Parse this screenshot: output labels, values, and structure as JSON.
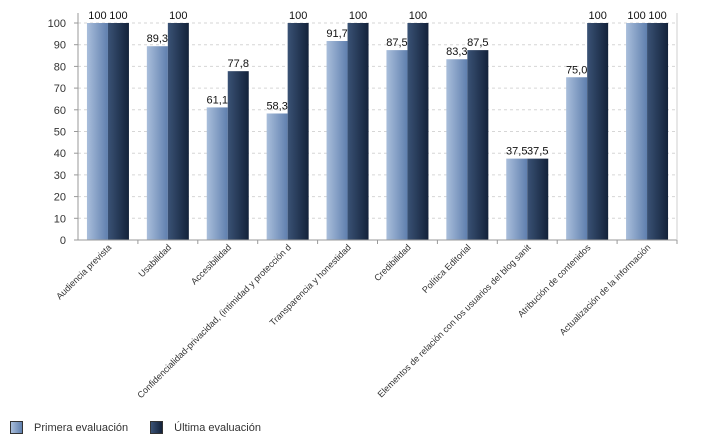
{
  "chart_data": {
    "type": "bar",
    "categories": [
      "Audiencia prevista",
      "Usabilidad",
      "Accesibilidad",
      "Confidencialidad-privacidad, (intimidad y protección d",
      "Transparencia y honestidad",
      "Credibilidad",
      "Política Editorial",
      "Elementos de relación con los usuarios del blog sanit",
      "Atribución de contenidos",
      "Actualización de la información"
    ],
    "series": [
      {
        "name": "Primera evaluación",
        "values": [
          100,
          89.3,
          61.1,
          58.3,
          91.7,
          87.5,
          83.3,
          37.5,
          75.0,
          100
        ],
        "labels": [
          "100",
          "89,3",
          "61,1",
          "58,3",
          "91,7",
          "87,5",
          "83,3",
          "37,5",
          "75,0",
          "100"
        ],
        "color": "#7f9bc4"
      },
      {
        "name": "Última evaluación",
        "values": [
          100,
          100,
          77.8,
          100,
          100,
          100,
          87.5,
          37.5,
          100,
          100
        ],
        "labels": [
          "100",
          "100",
          "77,8",
          "100",
          "100",
          "100",
          "87,5",
          "37,5",
          "100",
          "100"
        ],
        "color": "#1f3350"
      }
    ],
    "yticks": [
      "0",
      "10",
      "20",
      "30",
      "40",
      "50",
      "60",
      "70",
      "80",
      "90",
      "100"
    ],
    "ylim": [
      0,
      100
    ],
    "grid": true,
    "legend_position": "bottom-left"
  }
}
